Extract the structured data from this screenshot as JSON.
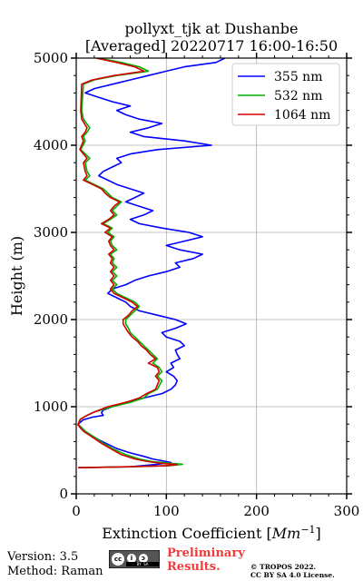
{
  "chart_data": {
    "type": "line",
    "title": "pollyxt_tjk at Dushanbe",
    "subtitle": "[Averaged] 20220717 16:00-16:50",
    "xlabel": "Extinction Coefficient [Mm^-1]",
    "xlabel_parts": {
      "base": "Extinction Coefficient [",
      "unit": "Mm",
      "exp": "−1",
      "close": "]"
    },
    "ylabel": "Height (m)",
    "xlim": [
      0,
      300
    ],
    "ylim": [
      0,
      5000
    ],
    "xticks": [
      "0",
      "100",
      "200",
      "300"
    ],
    "yticks": [
      "0",
      "1000",
      "2000",
      "3000",
      "4000",
      "5000"
    ],
    "grid": true,
    "legend_position": "top-right",
    "series": [
      {
        "name": "355 nm",
        "color": "#0000ff",
        "points": [
          [
            2,
            300
          ],
          [
            60,
            310
          ],
          [
            90,
            340
          ],
          [
            105,
            360
          ],
          [
            95,
            380
          ],
          [
            85,
            400
          ],
          [
            75,
            430
          ],
          [
            60,
            470
          ],
          [
            45,
            520
          ],
          [
            35,
            570
          ],
          [
            25,
            620
          ],
          [
            15,
            680
          ],
          [
            5,
            750
          ],
          [
            2,
            800
          ],
          [
            8,
            850
          ],
          [
            18,
            880
          ],
          [
            30,
            900
          ],
          [
            28,
            930
          ],
          [
            30,
            960
          ],
          [
            40,
            1000
          ],
          [
            55,
            1050
          ],
          [
            75,
            1100
          ],
          [
            95,
            1150
          ],
          [
            105,
            1200
          ],
          [
            110,
            1250
          ],
          [
            112,
            1300
          ],
          [
            108,
            1350
          ],
          [
            100,
            1400
          ],
          [
            108,
            1450
          ],
          [
            105,
            1500
          ],
          [
            115,
            1550
          ],
          [
            112,
            1600
          ],
          [
            110,
            1650
          ],
          [
            120,
            1700
          ],
          [
            115,
            1750
          ],
          [
            100,
            1800
          ],
          [
            95,
            1850
          ],
          [
            110,
            1900
          ],
          [
            122,
            1950
          ],
          [
            110,
            2000
          ],
          [
            90,
            2050
          ],
          [
            70,
            2100
          ],
          [
            60,
            2150
          ],
          [
            55,
            2200
          ],
          [
            45,
            2250
          ],
          [
            35,
            2300
          ],
          [
            40,
            2350
          ],
          [
            55,
            2400
          ],
          [
            65,
            2450
          ],
          [
            80,
            2500
          ],
          [
            100,
            2550
          ],
          [
            115,
            2600
          ],
          [
            110,
            2650
          ],
          [
            130,
            2700
          ],
          [
            140,
            2750
          ],
          [
            115,
            2800
          ],
          [
            100,
            2850
          ],
          [
            120,
            2900
          ],
          [
            140,
            2950
          ],
          [
            125,
            3000
          ],
          [
            95,
            3050
          ],
          [
            70,
            3100
          ],
          [
            60,
            3150
          ],
          [
            75,
            3200
          ],
          [
            85,
            3250
          ],
          [
            70,
            3300
          ],
          [
            55,
            3350
          ],
          [
            65,
            3400
          ],
          [
            75,
            3450
          ],
          [
            60,
            3500
          ],
          [
            45,
            3550
          ],
          [
            35,
            3600
          ],
          [
            25,
            3650
          ],
          [
            30,
            3700
          ],
          [
            40,
            3750
          ],
          [
            50,
            3800
          ],
          [
            45,
            3850
          ],
          [
            60,
            3900
          ],
          [
            90,
            3950
          ],
          [
            150,
            4000
          ],
          [
            120,
            4050
          ],
          [
            75,
            4100
          ],
          [
            60,
            4150
          ],
          [
            80,
            4200
          ],
          [
            95,
            4250
          ],
          [
            70,
            4300
          ],
          [
            55,
            4350
          ],
          [
            45,
            4400
          ],
          [
            60,
            4450
          ],
          [
            40,
            4500
          ],
          [
            25,
            4550
          ],
          [
            10,
            4600
          ],
          [
            20,
            4650
          ],
          [
            40,
            4700
          ],
          [
            60,
            4750
          ],
          [
            80,
            4800
          ],
          [
            100,
            4850
          ],
          [
            120,
            4900
          ],
          [
            155,
            4950
          ],
          [
            165,
            5000
          ]
        ]
      },
      {
        "name": "532 nm",
        "color": "#00b000",
        "points": [
          [
            2,
            300
          ],
          [
            60,
            310
          ],
          [
            105,
            325
          ],
          [
            118,
            340
          ],
          [
            100,
            355
          ],
          [
            85,
            370
          ],
          [
            70,
            400
          ],
          [
            55,
            450
          ],
          [
            40,
            520
          ],
          [
            30,
            580
          ],
          [
            20,
            650
          ],
          [
            10,
            720
          ],
          [
            2,
            800
          ],
          [
            5,
            860
          ],
          [
            12,
            900
          ],
          [
            20,
            940
          ],
          [
            40,
            1000
          ],
          [
            60,
            1050
          ],
          [
            75,
            1100
          ],
          [
            80,
            1150
          ],
          [
            90,
            1200
          ],
          [
            95,
            1300
          ],
          [
            90,
            1350
          ],
          [
            95,
            1400
          ],
          [
            92,
            1450
          ],
          [
            85,
            1500
          ],
          [
            90,
            1550
          ],
          [
            85,
            1600
          ],
          [
            80,
            1650
          ],
          [
            75,
            1700
          ],
          [
            70,
            1750
          ],
          [
            65,
            1800
          ],
          [
            60,
            1850
          ],
          [
            58,
            1900
          ],
          [
            55,
            1950
          ],
          [
            55,
            2000
          ],
          [
            60,
            2050
          ],
          [
            65,
            2100
          ],
          [
            70,
            2150
          ],
          [
            65,
            2200
          ],
          [
            55,
            2250
          ],
          [
            45,
            2300
          ],
          [
            40,
            2350
          ],
          [
            45,
            2400
          ],
          [
            40,
            2450
          ],
          [
            45,
            2500
          ],
          [
            40,
            2550
          ],
          [
            45,
            2600
          ],
          [
            40,
            2650
          ],
          [
            42,
            2700
          ],
          [
            38,
            2750
          ],
          [
            45,
            2800
          ],
          [
            40,
            2850
          ],
          [
            38,
            2900
          ],
          [
            42,
            2950
          ],
          [
            35,
            3000
          ],
          [
            40,
            3050
          ],
          [
            30,
            3100
          ],
          [
            38,
            3150
          ],
          [
            45,
            3200
          ],
          [
            40,
            3250
          ],
          [
            45,
            3300
          ],
          [
            50,
            3350
          ],
          [
            40,
            3400
          ],
          [
            35,
            3450
          ],
          [
            30,
            3500
          ],
          [
            20,
            3550
          ],
          [
            10,
            3600
          ],
          [
            15,
            3650
          ],
          [
            12,
            3700
          ],
          [
            10,
            3800
          ],
          [
            15,
            3850
          ],
          [
            5,
            3950
          ],
          [
            10,
            4050
          ],
          [
            8,
            4100
          ],
          [
            12,
            4150
          ],
          [
            15,
            4200
          ],
          [
            8,
            4300
          ],
          [
            6,
            4400
          ],
          [
            8,
            4700
          ],
          [
            20,
            4750
          ],
          [
            45,
            4800
          ],
          [
            80,
            4850
          ],
          [
            70,
            4900
          ],
          [
            50,
            4950
          ],
          [
            25,
            5000
          ]
        ]
      },
      {
        "name": "1064 nm",
        "color": "#d40000",
        "points": [
          [
            2,
            300
          ],
          [
            55,
            310
          ],
          [
            100,
            322
          ],
          [
            112,
            335
          ],
          [
            95,
            350
          ],
          [
            80,
            370
          ],
          [
            65,
            400
          ],
          [
            50,
            450
          ],
          [
            38,
            520
          ],
          [
            28,
            580
          ],
          [
            18,
            650
          ],
          [
            8,
            720
          ],
          [
            2,
            790
          ],
          [
            4,
            850
          ],
          [
            10,
            890
          ],
          [
            18,
            930
          ],
          [
            35,
            1000
          ],
          [
            55,
            1050
          ],
          [
            70,
            1100
          ],
          [
            78,
            1150
          ],
          [
            88,
            1200
          ],
          [
            92,
            1300
          ],
          [
            88,
            1350
          ],
          [
            92,
            1400
          ],
          [
            90,
            1450
          ],
          [
            80,
            1500
          ],
          [
            88,
            1550
          ],
          [
            82,
            1600
          ],
          [
            78,
            1650
          ],
          [
            72,
            1700
          ],
          [
            68,
            1750
          ],
          [
            62,
            1800
          ],
          [
            58,
            1850
          ],
          [
            55,
            1900
          ],
          [
            52,
            1950
          ],
          [
            52,
            2000
          ],
          [
            58,
            2050
          ],
          [
            62,
            2100
          ],
          [
            68,
            2150
          ],
          [
            62,
            2200
          ],
          [
            52,
            2250
          ],
          [
            42,
            2300
          ],
          [
            38,
            2350
          ],
          [
            42,
            2400
          ],
          [
            38,
            2450
          ],
          [
            42,
            2500
          ],
          [
            38,
            2550
          ],
          [
            42,
            2600
          ],
          [
            38,
            2650
          ],
          [
            40,
            2700
          ],
          [
            36,
            2750
          ],
          [
            42,
            2800
          ],
          [
            38,
            2850
          ],
          [
            36,
            2900
          ],
          [
            40,
            2950
          ],
          [
            32,
            3000
          ],
          [
            38,
            3050
          ],
          [
            28,
            3100
          ],
          [
            36,
            3150
          ],
          [
            42,
            3200
          ],
          [
            38,
            3250
          ],
          [
            42,
            3300
          ],
          [
            48,
            3350
          ],
          [
            38,
            3400
          ],
          [
            32,
            3450
          ],
          [
            28,
            3500
          ],
          [
            18,
            3550
          ],
          [
            8,
            3600
          ],
          [
            12,
            3650
          ],
          [
            10,
            3700
          ],
          [
            8,
            3800
          ],
          [
            12,
            3850
          ],
          [
            4,
            3950
          ],
          [
            8,
            4050
          ],
          [
            6,
            4100
          ],
          [
            10,
            4150
          ],
          [
            12,
            4200
          ],
          [
            6,
            4300
          ],
          [
            5,
            4400
          ],
          [
            6,
            4700
          ],
          [
            18,
            4750
          ],
          [
            42,
            4800
          ],
          [
            75,
            4850
          ],
          [
            65,
            4900
          ],
          [
            45,
            4950
          ],
          [
            22,
            5000
          ]
        ]
      }
    ]
  },
  "footer": {
    "version": "Version: 3.5",
    "method": "Method: Raman",
    "preliminary_line1": "Preliminary",
    "preliminary_line2": "Results.",
    "copyright_line1": "© TROPOS 2022.",
    "copyright_line2": "CC BY SA 4.0 License.",
    "license_badge": {
      "cc": "cc",
      "by": "BY",
      "sa": "SA"
    }
  }
}
